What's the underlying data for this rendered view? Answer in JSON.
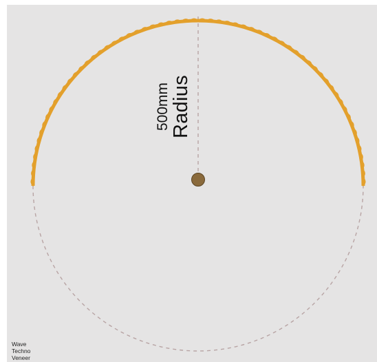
{
  "diagram": {
    "radius_value": "500mm",
    "radius_word": "Radius",
    "colors": {
      "background": "#e5e4e4",
      "edge_band": "#e3a02c",
      "dashed_lines": "#b8a4a4",
      "center_dot": "#8a6a3c",
      "text": "#111111"
    }
  },
  "product": {
    "line1": "Wave",
    "line2": "Techno",
    "line3": "Veneer"
  }
}
